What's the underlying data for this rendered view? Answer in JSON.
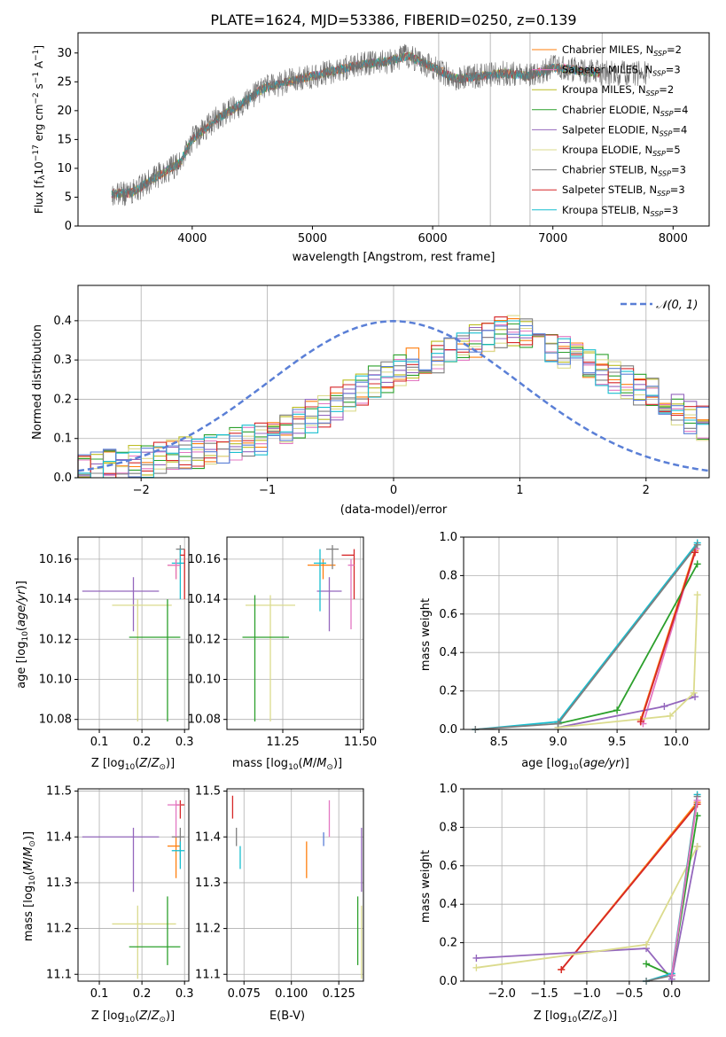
{
  "figure": {
    "title": "PLATE=1624, MJD=53386, FIBERID=0250, z=0.139"
  },
  "chart_data": [
    {
      "id": "spectrum",
      "type": "line",
      "title": "PLATE=1624, MJD=53386, FIBERID=0250, z=0.139",
      "xlabel": "wavelength [Angstrom, rest frame]",
      "ylabel": "Flux [f_λ 10^-17 erg cm^-2 s^-1 A^-1]",
      "xlim": [
        3050,
        8300
      ],
      "ylim": [
        0,
        33.5
      ],
      "xticks": [
        4000,
        5000,
        6000,
        7000,
        8000
      ],
      "yticks": [
        0,
        5,
        10,
        15,
        20,
        25,
        30
      ],
      "legend_position": "top-right",
      "series": [
        {
          "name": "Chabrier MILES, N_SSP=2",
          "color": "#ff7f0e"
        },
        {
          "name": "Salpeter MILES, N_SSP=3",
          "color": "#e377c2"
        },
        {
          "name": "Kroupa MILES, N_SSP=2",
          "color": "#bcbd22"
        },
        {
          "name": "Chabrier ELODIE, N_SSP=4",
          "color": "#2ca02c"
        },
        {
          "name": "Salpeter ELODIE, N_SSP=4",
          "color": "#9467bd"
        },
        {
          "name": "Kroupa ELODIE, N_SSP=5",
          "color": "#dbdb8d"
        },
        {
          "name": "Chabrier STELIB, N_SSP=3",
          "color": "#7f7f7f"
        },
        {
          "name": "Salpeter STELIB, N_SSP=3",
          "color": "#d62728"
        },
        {
          "name": "Kroupa STELIB, N_SSP=3",
          "color": "#17becf"
        }
      ],
      "data_trend": {
        "x": [
          3300,
          3500,
          3700,
          3900,
          4000,
          4200,
          4400,
          4600,
          4800,
          5000,
          5200,
          5400,
          5600,
          5800,
          6000,
          6200,
          6400,
          6600,
          6800,
          7000,
          7200,
          7400
        ],
        "y": [
          5.5,
          5.8,
          8.5,
          11.0,
          15.0,
          18.5,
          21.0,
          24.0,
          25.0,
          26.0,
          27.0,
          28.0,
          28.5,
          29.5,
          27.5,
          25.5,
          26.0,
          26.5,
          26.0,
          27.5,
          27.0,
          26.5
        ]
      }
    },
    {
      "id": "residuals",
      "type": "area",
      "xlabel": "(data-model)/error",
      "ylabel": "Normed distribution",
      "xlim": [
        -2.5,
        2.5
      ],
      "ylim": [
        0,
        0.49
      ],
      "xticks": [
        -2,
        -1,
        0,
        1,
        2
      ],
      "yticks": [
        0.0,
        0.1,
        0.2,
        0.3,
        0.4
      ],
      "grid": true,
      "legend_position": "top-right",
      "legend": [
        {
          "name": "𝒩(0, 1)",
          "color": "#5a7fd6",
          "style": "dashed"
        }
      ],
      "histogram_envelope": {
        "x": [
          -2.5,
          -2.0,
          -1.5,
          -1.0,
          -0.5,
          0.0,
          0.5,
          1.0,
          1.5,
          2.0,
          2.5
        ],
        "y": [
          0.02,
          0.04,
          0.07,
          0.1,
          0.18,
          0.27,
          0.33,
          0.38,
          0.3,
          0.22,
          0.13
        ]
      }
    },
    {
      "id": "age_vs_Z",
      "type": "scatter",
      "xlabel": "Z [log10(Z/Z⊙)]",
      "ylabel": "age [log10(age/yr)]",
      "xlim": [
        0.05,
        0.31
      ],
      "ylim": [
        10.075,
        10.171
      ],
      "xticks": [
        "0.1",
        "0.2",
        "0.3"
      ],
      "yticks": [
        "10.08",
        "10.10",
        "10.12",
        "10.14",
        "10.16"
      ],
      "points": [
        {
          "x": 0.18,
          "y": 10.144,
          "xerr": [
            0.06,
            0.24
          ],
          "yerr": [
            10.124,
            10.151
          ],
          "color": "#9467bd"
        },
        {
          "x": 0.19,
          "y": 10.137,
          "xerr": [
            0.13,
            0.27
          ],
          "yerr": [
            10.079,
            10.14
          ],
          "color": "#dbdb8d"
        },
        {
          "x": 0.26,
          "y": 10.121,
          "xerr": [
            0.17,
            0.29
          ],
          "yerr": [
            10.079,
            10.14
          ],
          "color": "#2ca02c"
        },
        {
          "x": 0.28,
          "y": 10.157,
          "xerr": [
            0.26,
            0.29
          ],
          "yerr": [
            10.15,
            10.16
          ],
          "color": "#ff7f0e"
        },
        {
          "x": 0.29,
          "y": 10.165,
          "xerr": [
            0.28,
            0.3
          ],
          "yerr": [
            10.155,
            10.167
          ],
          "color": "#7f7f7f"
        },
        {
          "x": 0.29,
          "y": 10.158,
          "xerr": [
            0.27,
            0.3
          ],
          "yerr": [
            10.14,
            10.165
          ],
          "color": "#17becf"
        },
        {
          "x": 0.3,
          "y": 10.162,
          "xerr": [
            0.29,
            0.3
          ],
          "yerr": [
            10.14,
            10.165
          ],
          "color": "#d62728"
        },
        {
          "x": 0.28,
          "y": 10.157,
          "xerr": [
            0.26,
            0.29
          ],
          "yerr": [
            10.15,
            10.16
          ],
          "color": "#e377c2"
        }
      ]
    },
    {
      "id": "age_vs_mass",
      "type": "scatter",
      "xlabel": "mass [log10(M/M⊙)]",
      "ylabel": "",
      "xlim": [
        11.07,
        11.51
      ],
      "ylim": [
        10.075,
        10.171
      ],
      "xticks": [
        "11.25",
        "11.50"
      ],
      "yticks": [
        "10.08",
        "10.10",
        "10.12",
        "10.14",
        "10.16"
      ],
      "points": [
        {
          "x": 11.4,
          "y": 10.144,
          "xerr": [
            11.36,
            11.44
          ],
          "yerr": [
            10.124,
            10.151
          ],
          "color": "#9467bd"
        },
        {
          "x": 11.21,
          "y": 10.137,
          "xerr": [
            11.13,
            11.29
          ],
          "yerr": [
            10.079,
            10.142
          ],
          "color": "#dbdb8d"
        },
        {
          "x": 11.16,
          "y": 10.121,
          "xerr": [
            11.12,
            11.27
          ],
          "yerr": [
            10.079,
            10.142
          ],
          "color": "#2ca02c"
        },
        {
          "x": 11.38,
          "y": 10.157,
          "xerr": [
            11.33,
            11.42
          ],
          "yerr": [
            10.15,
            10.16
          ],
          "color": "#ff7f0e"
        },
        {
          "x": 11.41,
          "y": 10.165,
          "xerr": [
            11.39,
            11.43
          ],
          "yerr": [
            10.155,
            10.167
          ],
          "color": "#7f7f7f"
        },
        {
          "x": 11.37,
          "y": 10.158,
          "xerr": [
            11.35,
            11.39
          ],
          "yerr": [
            10.134,
            10.165
          ],
          "color": "#17becf"
        },
        {
          "x": 11.48,
          "y": 10.162,
          "xerr": [
            11.44,
            11.48
          ],
          "yerr": [
            10.14,
            10.165
          ],
          "color": "#d62728"
        },
        {
          "x": 11.47,
          "y": 10.157,
          "xerr": [
            11.46,
            11.48
          ],
          "yerr": [
            10.125,
            10.16
          ],
          "color": "#e377c2"
        }
      ]
    },
    {
      "id": "weight_vs_age",
      "type": "line",
      "xlabel": "age  [log10(age/yr)]",
      "ylabel": "mass weight",
      "xlim": [
        8.2,
        10.28
      ],
      "ylim": [
        0,
        1.0
      ],
      "xticks": [
        "8.5",
        "9.0",
        "9.5",
        "10.0"
      ],
      "yticks": [
        "0.0",
        "0.2",
        "0.4",
        "0.6",
        "0.8",
        "1.0"
      ],
      "grid": true,
      "series": [
        {
          "color": "#ff7f0e",
          "x": [
            9.7,
            10.16
          ],
          "y": [
            0.05,
            0.93
          ]
        },
        {
          "color": "#e377c2",
          "x": [
            9.72,
            10.17
          ],
          "y": [
            0.03,
            0.94
          ]
        },
        {
          "color": "#2ca02c",
          "x": [
            9.0,
            9.5,
            10.18
          ],
          "y": [
            0.03,
            0.1,
            0.86
          ]
        },
        {
          "color": "#9467bd",
          "x": [
            9.0,
            9.9,
            10.16
          ],
          "y": [
            0.01,
            0.12,
            0.17
          ]
        },
        {
          "color": "#dbdb8d",
          "x": [
            9.0,
            9.95,
            10.15,
            10.18
          ],
          "y": [
            0.01,
            0.07,
            0.19,
            0.7
          ]
        },
        {
          "color": "#17becf",
          "x": [
            8.3,
            9.0,
            10.18
          ],
          "y": [
            0.0,
            0.04,
            0.97
          ]
        },
        {
          "color": "#7f7f7f",
          "x": [
            8.3,
            9.0,
            10.18
          ],
          "y": [
            0.0,
            0.03,
            0.96
          ]
        },
        {
          "color": "#d62728",
          "x": [
            9.7,
            10.16
          ],
          "y": [
            0.04,
            0.92
          ]
        }
      ]
    },
    {
      "id": "mass_vs_Z",
      "type": "scatter",
      "xlabel": "Z [log10(Z/Z⊙)]",
      "ylabel": "mass [log10(M/M⊙)]",
      "xlim": [
        0.05,
        0.31
      ],
      "ylim": [
        11.085,
        11.505
      ],
      "xticks": [
        "0.1",
        "0.2",
        "0.3"
      ],
      "yticks": [
        "11.1",
        "11.2",
        "11.3",
        "11.4",
        "11.5"
      ],
      "points": [
        {
          "x": 0.18,
          "y": 11.4,
          "xerr": [
            0.06,
            0.24
          ],
          "yerr": [
            11.28,
            11.42
          ],
          "color": "#9467bd"
        },
        {
          "x": 0.19,
          "y": 11.21,
          "xerr": [
            0.13,
            0.28
          ],
          "yerr": [
            11.09,
            11.25
          ],
          "color": "#dbdb8d"
        },
        {
          "x": 0.26,
          "y": 11.16,
          "xerr": [
            0.17,
            0.29
          ],
          "yerr": [
            11.12,
            11.27
          ],
          "color": "#2ca02c"
        },
        {
          "x": 0.28,
          "y": 11.38,
          "xerr": [
            0.26,
            0.29
          ],
          "yerr": [
            11.31,
            11.4
          ],
          "color": "#ff7f0e"
        },
        {
          "x": 0.29,
          "y": 11.4,
          "xerr": [
            0.27,
            0.3
          ],
          "yerr": [
            11.35,
            11.42
          ],
          "color": "#7f7f7f"
        },
        {
          "x": 0.29,
          "y": 11.37,
          "xerr": [
            0.27,
            0.3
          ],
          "yerr": [
            11.33,
            11.39
          ],
          "color": "#17becf"
        },
        {
          "x": 0.29,
          "y": 11.47,
          "xerr": [
            0.28,
            0.3
          ],
          "yerr": [
            11.44,
            11.48
          ],
          "color": "#d62728"
        },
        {
          "x": 0.28,
          "y": 11.47,
          "xerr": [
            0.26,
            0.29
          ],
          "yerr": [
            11.4,
            11.48
          ],
          "color": "#e377c2"
        }
      ]
    },
    {
      "id": "mass_vs_ebv",
      "type": "scatter",
      "xlabel": "E(B-V)",
      "ylabel": "",
      "xlim": [
        0.066,
        0.138
      ],
      "ylim": [
        11.085,
        11.505
      ],
      "xticks": [
        "0.075",
        "0.100",
        "0.125"
      ],
      "yticks": [
        "11.1",
        "11.2",
        "11.3",
        "11.4",
        "11.5"
      ],
      "points": [
        {
          "x": 0.137,
          "y": 11.4,
          "yerr": [
            11.28,
            11.42
          ],
          "color": "#9467bd"
        },
        {
          "x": 0.137,
          "y": 11.21,
          "yerr": [
            11.09,
            11.25
          ],
          "color": "#dbdb8d"
        },
        {
          "x": 0.135,
          "y": 11.16,
          "yerr": [
            11.12,
            11.27
          ],
          "color": "#2ca02c"
        },
        {
          "x": 0.108,
          "y": 11.38,
          "yerr": [
            11.31,
            11.39
          ],
          "color": "#ff7f0e"
        },
        {
          "x": 0.071,
          "y": 11.4,
          "yerr": [
            11.38,
            11.42
          ],
          "color": "#7f7f7f"
        },
        {
          "x": 0.073,
          "y": 11.36,
          "yerr": [
            11.33,
            11.38
          ],
          "color": "#17becf"
        },
        {
          "x": 0.069,
          "y": 11.47,
          "yerr": [
            11.44,
            11.49
          ],
          "color": "#d62728"
        },
        {
          "x": 0.12,
          "y": 11.47,
          "yerr": [
            11.4,
            11.48
          ],
          "color": "#e377c2"
        },
        {
          "x": 0.117,
          "y": 11.4,
          "yerr": [
            11.38,
            11.41
          ],
          "color": "#5a7fd6"
        }
      ]
    },
    {
      "id": "weight_vs_Z",
      "type": "line",
      "xlabel": "Z [log10(Z/Z⊙)]",
      "ylabel": "mass weight",
      "xlim": [
        -2.45,
        0.44
      ],
      "ylim": [
        0,
        1.0
      ],
      "xticks": [
        "−2.0",
        "−1.5",
        "−1.0",
        "−0.5",
        "0.0"
      ],
      "yticks": [
        "0.0",
        "0.2",
        "0.4",
        "0.6",
        "0.8",
        "1.0"
      ],
      "grid": true,
      "series": [
        {
          "color": "#ff7f0e",
          "x": [
            -1.3,
            0.3
          ],
          "y": [
            0.06,
            0.93
          ]
        },
        {
          "color": "#d62728",
          "x": [
            -1.3,
            0.3
          ],
          "y": [
            0.06,
            0.92
          ]
        },
        {
          "color": "#9467bd",
          "x": [
            -2.3,
            -0.3,
            0.0,
            0.3
          ],
          "y": [
            0.12,
            0.17,
            0.01,
            0.7
          ]
        },
        {
          "color": "#dbdb8d",
          "x": [
            -2.3,
            -0.3,
            0.3
          ],
          "y": [
            0.07,
            0.19,
            0.7
          ]
        },
        {
          "color": "#2ca02c",
          "x": [
            -0.3,
            0.0,
            0.3
          ],
          "y": [
            0.09,
            0.03,
            0.86
          ]
        },
        {
          "color": "#17becf",
          "x": [
            -0.3,
            0.0,
            0.3
          ],
          "y": [
            0.0,
            0.04,
            0.97
          ]
        },
        {
          "color": "#7f7f7f",
          "x": [
            -0.3,
            0.0,
            0.3
          ],
          "y": [
            0.0,
            0.03,
            0.96
          ]
        },
        {
          "color": "#e377c2",
          "x": [
            0.0,
            0.3
          ],
          "y": [
            0.03,
            0.94
          ]
        }
      ]
    }
  ]
}
